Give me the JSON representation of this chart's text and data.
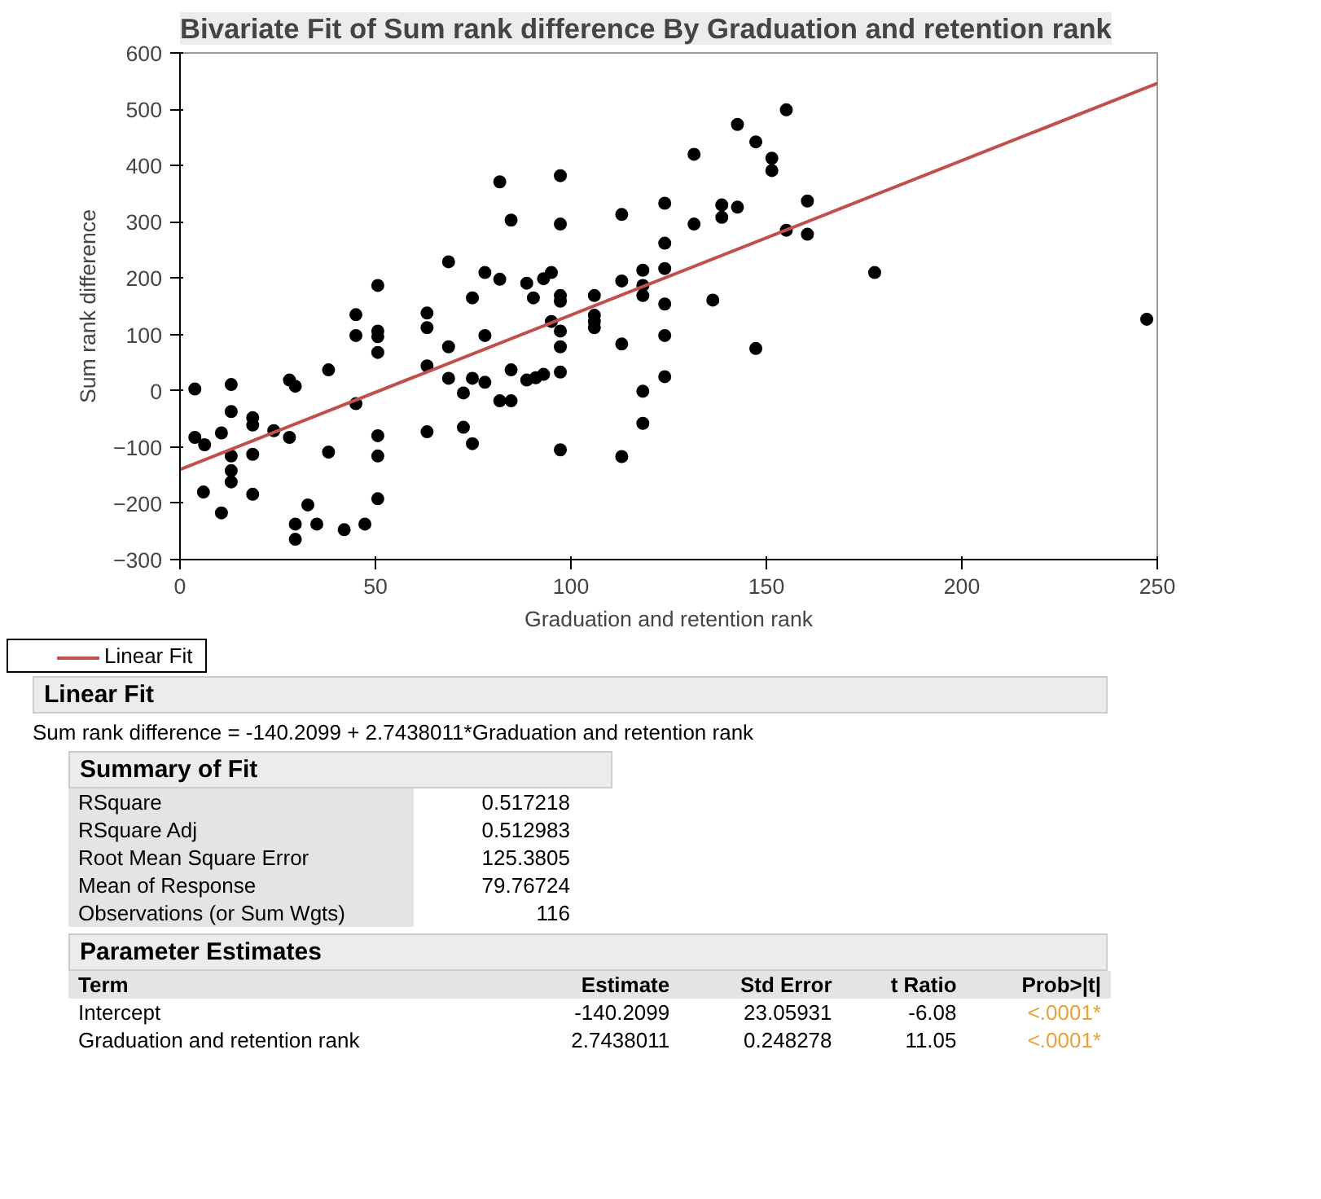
{
  "chart_data": {
    "type": "scatter",
    "title": "Bivariate Fit of Sum rank difference By Graduation and retention rank",
    "xlabel": "Graduation and retention rank",
    "ylabel": "Sum rank difference",
    "xlim": [
      0,
      250
    ],
    "ylim": [
      -300,
      600
    ],
    "xticks": [
      0,
      50,
      100,
      150,
      200,
      250
    ],
    "yticks": [
      -300,
      -200,
      -100,
      0,
      100,
      200,
      300,
      400,
      500,
      600
    ],
    "grid": false,
    "legend": "bottom left",
    "series": [
      {
        "color": "#000000",
        "marker": "circle",
        "x": [
          3.8,
          3.8,
          6.3,
          6,
          10.6,
          10.6,
          13.1,
          13.1,
          13.1,
          13.1,
          13.1,
          18.6,
          18.6,
          18.6,
          18.6,
          24,
          28,
          29.5,
          28,
          29.5,
          29.5,
          32.7,
          35,
          38,
          38,
          42,
          45,
          45,
          45,
          47.3,
          50.6,
          50.6,
          50.6,
          50.6,
          50.6,
          50.6,
          50.6,
          63.2,
          63.2,
          63.2,
          63.2,
          68.7,
          68.7,
          68.7,
          72.5,
          72.5,
          74.8,
          74.8,
          74.8,
          78,
          78,
          78,
          81.8,
          81.8,
          81.8,
          84.7,
          84.7,
          84.7,
          88.7,
          88.7,
          90.4,
          91,
          93,
          93,
          95,
          95,
          97.3,
          97.3,
          97.3,
          97.3,
          97.3,
          97.3,
          97.3,
          97.3,
          106,
          106,
          106,
          106,
          113,
          113,
          113,
          113,
          118.4,
          118.4,
          118.4,
          118.4,
          118.4,
          124,
          124,
          124,
          124,
          124,
          124,
          131.5,
          131.5,
          136.3,
          138.6,
          138.6,
          142.6,
          142.6,
          147.3,
          147.3,
          151.4,
          151.4,
          155.1,
          160.5,
          155.1,
          160.5,
          177.7,
          247.3
        ],
        "values": [
          3,
          -83,
          -96,
          -180,
          -217,
          -75,
          11,
          -37,
          -116,
          -142,
          -162,
          -48,
          -61,
          -113,
          -184,
          -71,
          19,
          8,
          -83,
          -237,
          -264,
          -203,
          -237,
          37,
          -109,
          -247,
          135,
          98,
          -23,
          -237,
          187,
          106,
          96,
          68,
          -80,
          -116,
          -192,
          138,
          112,
          44,
          -73,
          229,
          78,
          22,
          -4,
          -65,
          165,
          22,
          -94,
          210,
          98,
          15,
          371,
          198,
          -18,
          303,
          37,
          -18,
          191,
          19,
          165,
          23,
          199,
          29,
          210,
          123,
          382,
          296,
          169,
          159,
          106,
          78,
          33,
          -105,
          169,
          134,
          123,
          112,
          313,
          195,
          83,
          -117,
          214,
          187,
          169,
          -1,
          -58,
          333,
          262,
          217,
          154,
          98,
          25,
          420,
          296,
          161,
          330,
          308,
          473,
          326,
          442,
          75,
          413,
          391,
          499,
          337,
          285,
          278,
          210,
          127
        ]
      },
      {
        "type": "line",
        "name": "Linear Fit",
        "color": "#c0504d",
        "x": [
          0,
          250
        ],
        "values": [
          -140,
          546
        ]
      }
    ],
    "annotations": [
      "Linear Fit",
      "Sum rank difference = -140.2099 + 2.7438011*Graduation and retention rank",
      "Summary of Fit",
      "RSquare",
      "0.517218",
      "RSquare Adj",
      "0.512983",
      "Root Mean Square Error",
      "125.3805",
      "Mean of Response",
      "79.76724",
      "Observations (or Sum Wgts)",
      "116",
      "Parameter Estimates",
      "Term",
      "Estimate",
      "Std Error",
      "t Ratio",
      "Prob>|t|",
      "Intercept",
      "-140.2099",
      "23.05931",
      "-6.08",
      "<.0001*",
      "Graduation and retention rank",
      "2.7438011",
      "0.248278",
      "11.05",
      "<.0001*"
    ]
  }
}
